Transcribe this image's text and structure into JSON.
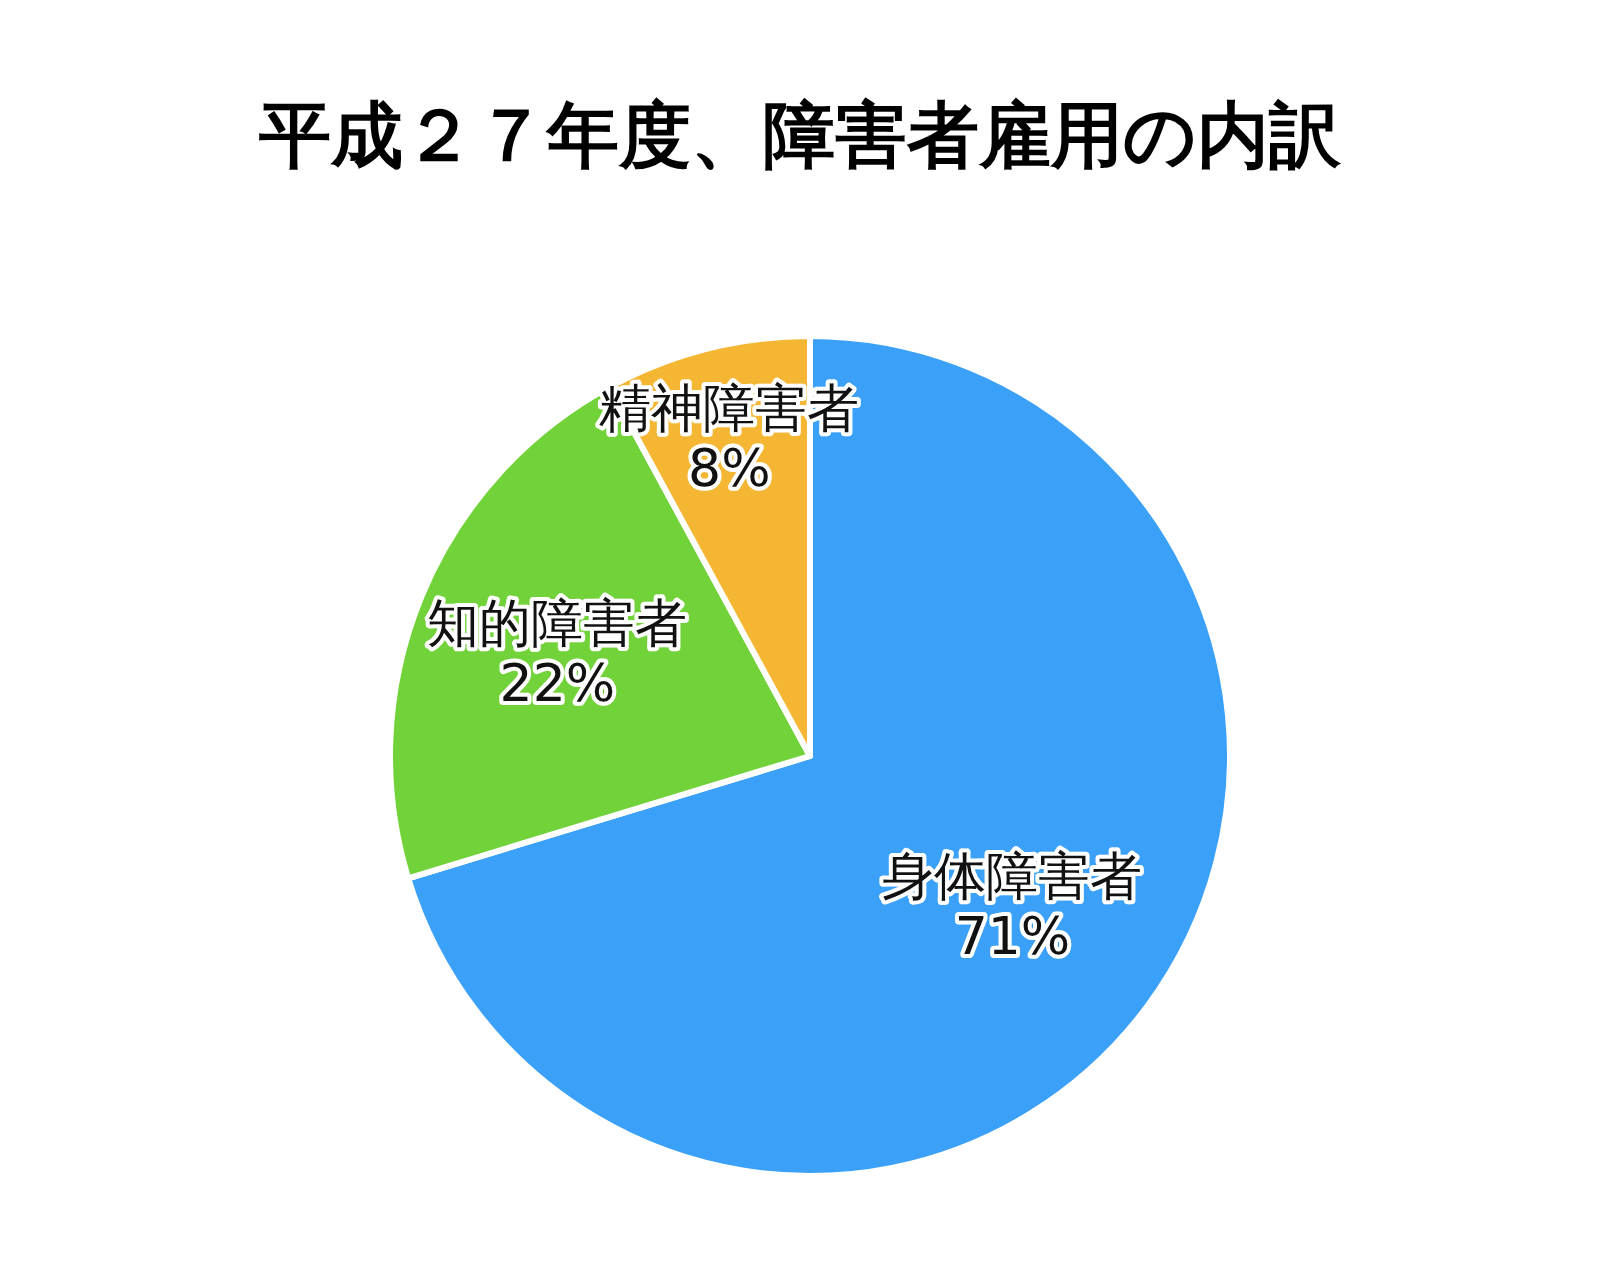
{
  "chart_data": {
    "type": "pie",
    "title": "平成２７年度、障害者雇用の内訳",
    "categories": [
      "身体障害者",
      "知的障害者",
      "精神障害者"
    ],
    "values": [
      71,
      22,
      8
    ],
    "colors": [
      "#3aa0f8",
      "#72d23a",
      "#f5b733"
    ],
    "value_labels": [
      "71%",
      "22%",
      "8%"
    ],
    "legend": false
  }
}
